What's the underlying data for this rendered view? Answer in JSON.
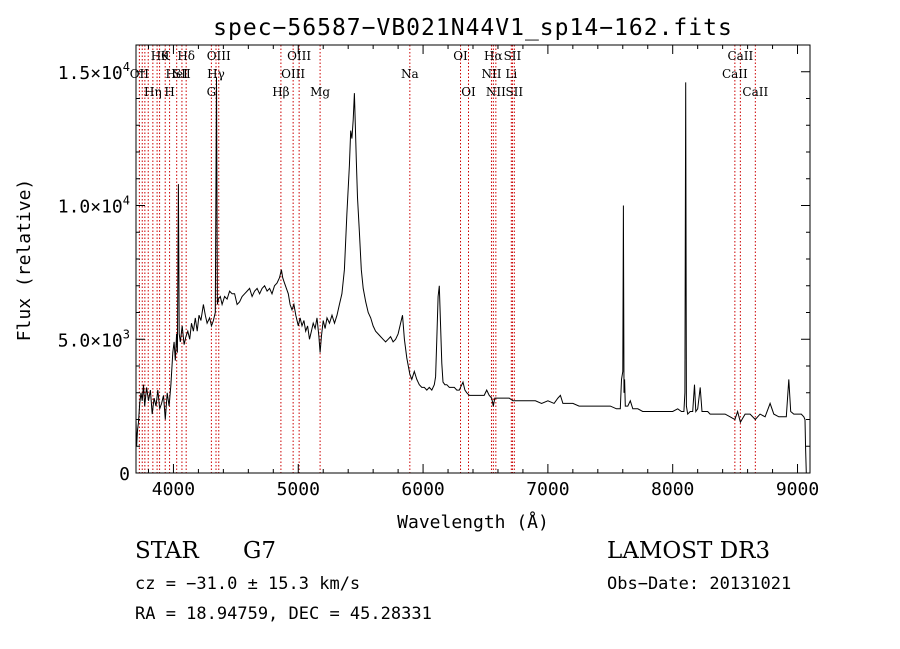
{
  "chart_data": {
    "type": "line",
    "title": "spec−56587−VB021N44V1_sp14−162.fits",
    "xlabel": "Wavelength (Å)",
    "ylabel": "Flux (relative)",
    "xlim": [
      3700,
      9100
    ],
    "ylim": [
      0,
      16000
    ],
    "xticks": [
      4000,
      5000,
      6000,
      7000,
      8000,
      9000
    ],
    "xtick_labels": [
      "4000",
      "5000",
      "6000",
      "7000",
      "8000",
      "9000"
    ],
    "yticks": [
      0,
      5000,
      10000,
      15000
    ],
    "ytick_labels": [
      {
        "mant": "0",
        "exp": ""
      },
      {
        "mant": "5.0×10",
        "exp": "3"
      },
      {
        "mant": "1.0×10",
        "exp": "4"
      },
      {
        "mant": "1.5×10",
        "exp": "4"
      }
    ],
    "lines_color": "#cc0000",
    "spectrum_color": "#000000",
    "line_markers": [
      {
        "wl": 3727,
        "label": "OII",
        "row": 1
      },
      {
        "wl": 3750,
        "label": "",
        "row": 0
      },
      {
        "wl": 3771,
        "label": "",
        "row": 0
      },
      {
        "wl": 3798,
        "label": "",
        "row": 0
      },
      {
        "wl": 3835,
        "label": "Hη",
        "row": 2
      },
      {
        "wl": 3869,
        "label": "",
        "row": 0
      },
      {
        "wl": 3889,
        "label": "Hθ",
        "row": 0
      },
      {
        "wl": 3934,
        "label": "K",
        "row": 0
      },
      {
        "wl": 3969,
        "label": "H",
        "row": 2
      },
      {
        "wl": 4026,
        "label": "HeI",
        "row": 1
      },
      {
        "wl": 4068,
        "label": "SII",
        "row": 1
      },
      {
        "wl": 4102,
        "label": "Hδ",
        "row": 0
      },
      {
        "wl": 4304,
        "label": "G",
        "row": 2
      },
      {
        "wl": 4341,
        "label": "Hγ",
        "row": 1
      },
      {
        "wl": 4363,
        "label": "OIII",
        "row": 0
      },
      {
        "wl": 4861,
        "label": "Hβ",
        "row": 2
      },
      {
        "wl": 4959,
        "label": "OIII",
        "row": 1
      },
      {
        "wl": 5007,
        "label": "OIII",
        "row": 0
      },
      {
        "wl": 5175,
        "label": "Mg",
        "row": 2
      },
      {
        "wl": 5894,
        "label": "Na",
        "row": 1
      },
      {
        "wl": 6300,
        "label": "OI",
        "row": 0
      },
      {
        "wl": 6364,
        "label": "OI",
        "row": 2
      },
      {
        "wl": 6548,
        "label": "NII",
        "row": 1
      },
      {
        "wl": 6563,
        "label": "Hα",
        "row": 0
      },
      {
        "wl": 6583,
        "label": "NII",
        "row": 2
      },
      {
        "wl": 6707,
        "label": "Li",
        "row": 1
      },
      {
        "wl": 6716,
        "label": "SII",
        "row": 0
      },
      {
        "wl": 6731,
        "label": "SII",
        "row": 2
      },
      {
        "wl": 8498,
        "label": "CaII",
        "row": 1
      },
      {
        "wl": 8542,
        "label": "CaII",
        "row": 0
      },
      {
        "wl": 8662,
        "label": "CaII",
        "row": 2
      }
    ],
    "spectrum": [
      [
        3700,
        2000
      ],
      [
        3705,
        1000
      ],
      [
        3712,
        1600
      ],
      [
        3720,
        1900
      ],
      [
        3730,
        2600
      ],
      [
        3740,
        3000
      ],
      [
        3750,
        2700
      ],
      [
        3760,
        3300
      ],
      [
        3770,
        2500
      ],
      [
        3785,
        3200
      ],
      [
        3800,
        2700
      ],
      [
        3815,
        3100
      ],
      [
        3830,
        2200
      ],
      [
        3845,
        2800
      ],
      [
        3860,
        2500
      ],
      [
        3875,
        3100
      ],
      [
        3890,
        2400
      ],
      [
        3905,
        2600
      ],
      [
        3920,
        2900
      ],
      [
        3935,
        2000
      ],
      [
        3950,
        3000
      ],
      [
        3965,
        2500
      ],
      [
        3980,
        3300
      ],
      [
        3995,
        4500
      ],
      [
        4005,
        4900
      ],
      [
        4015,
        4200
      ],
      [
        4025,
        5200
      ],
      [
        4032,
        4500
      ],
      [
        4040,
        10800
      ],
      [
        4046,
        5200
      ],
      [
        4055,
        4900
      ],
      [
        4070,
        5500
      ],
      [
        4085,
        4800
      ],
      [
        4100,
        5100
      ],
      [
        4115,
        5300
      ],
      [
        4130,
        5000
      ],
      [
        4145,
        5600
      ],
      [
        4160,
        5300
      ],
      [
        4175,
        5800
      ],
      [
        4190,
        5300
      ],
      [
        4205,
        5900
      ],
      [
        4220,
        5700
      ],
      [
        4240,
        6300
      ],
      [
        4255,
        5900
      ],
      [
        4270,
        5600
      ],
      [
        4290,
        5800
      ],
      [
        4305,
        5500
      ],
      [
        4320,
        5700
      ],
      [
        4335,
        6000
      ],
      [
        4345,
        14800
      ],
      [
        4352,
        6300
      ],
      [
        4360,
        6500
      ],
      [
        4375,
        6600
      ],
      [
        4390,
        6300
      ],
      [
        4410,
        6600
      ],
      [
        4430,
        6500
      ],
      [
        4450,
        6800
      ],
      [
        4470,
        6700
      ],
      [
        4490,
        6700
      ],
      [
        4510,
        6300
      ],
      [
        4530,
        6400
      ],
      [
        4550,
        6600
      ],
      [
        4570,
        6700
      ],
      [
        4590,
        6800
      ],
      [
        4610,
        6900
      ],
      [
        4630,
        6600
      ],
      [
        4650,
        6800
      ],
      [
        4670,
        6900
      ],
      [
        4690,
        6700
      ],
      [
        4710,
        6900
      ],
      [
        4730,
        7000
      ],
      [
        4750,
        6800
      ],
      [
        4770,
        6900
      ],
      [
        4790,
        6700
      ],
      [
        4810,
        7000
      ],
      [
        4830,
        7100
      ],
      [
        4850,
        7300
      ],
      [
        4865,
        7600
      ],
      [
        4875,
        7300
      ],
      [
        4890,
        7100
      ],
      [
        4905,
        6900
      ],
      [
        4920,
        6700
      ],
      [
        4935,
        6300
      ],
      [
        4950,
        6100
      ],
      [
        4965,
        6300
      ],
      [
        4980,
        5900
      ],
      [
        5000,
        5500
      ],
      [
        5015,
        5800
      ],
      [
        5030,
        5500
      ],
      [
        5045,
        5700
      ],
      [
        5060,
        5300
      ],
      [
        5075,
        5500
      ],
      [
        5090,
        5000
      ],
      [
        5105,
        5300
      ],
      [
        5120,
        5600
      ],
      [
        5135,
        5400
      ],
      [
        5150,
        5800
      ],
      [
        5165,
        5100
      ],
      [
        5175,
        4500
      ],
      [
        5185,
        5100
      ],
      [
        5200,
        5700
      ],
      [
        5215,
        5400
      ],
      [
        5230,
        5800
      ],
      [
        5250,
        5600
      ],
      [
        5270,
        5900
      ],
      [
        5290,
        5600
      ],
      [
        5310,
        5900
      ],
      [
        5330,
        6300
      ],
      [
        5350,
        6700
      ],
      [
        5370,
        7600
      ],
      [
        5390,
        9700
      ],
      [
        5410,
        11500
      ],
      [
        5420,
        12800
      ],
      [
        5430,
        12500
      ],
      [
        5440,
        13200
      ],
      [
        5450,
        14200
      ],
      [
        5458,
        12900
      ],
      [
        5465,
        11700
      ],
      [
        5475,
        10300
      ],
      [
        5490,
        9000
      ],
      [
        5505,
        7600
      ],
      [
        5520,
        6900
      ],
      [
        5540,
        6400
      ],
      [
        5560,
        6000
      ],
      [
        5580,
        5800
      ],
      [
        5600,
        5500
      ],
      [
        5620,
        5300
      ],
      [
        5640,
        5200
      ],
      [
        5660,
        5100
      ],
      [
        5680,
        5000
      ],
      [
        5700,
        4900
      ],
      [
        5720,
        5000
      ],
      [
        5740,
        5100
      ],
      [
        5760,
        4900
      ],
      [
        5780,
        5000
      ],
      [
        5800,
        5200
      ],
      [
        5820,
        5600
      ],
      [
        5835,
        5900
      ],
      [
        5850,
        5000
      ],
      [
        5870,
        4300
      ],
      [
        5894,
        3700
      ],
      [
        5910,
        3500
      ],
      [
        5930,
        3800
      ],
      [
        5950,
        3500
      ],
      [
        5970,
        3300
      ],
      [
        5990,
        3200
      ],
      [
        6010,
        3200
      ],
      [
        6030,
        3100
      ],
      [
        6050,
        3200
      ],
      [
        6070,
        3100
      ],
      [
        6090,
        3300
      ],
      [
        6100,
        3600
      ],
      [
        6110,
        5000
      ],
      [
        6120,
        6600
      ],
      [
        6130,
        7000
      ],
      [
        6140,
        5600
      ],
      [
        6150,
        4100
      ],
      [
        6160,
        3400
      ],
      [
        6175,
        3300
      ],
      [
        6190,
        3300
      ],
      [
        6210,
        3200
      ],
      [
        6230,
        3200
      ],
      [
        6250,
        3200
      ],
      [
        6270,
        3100
      ],
      [
        6290,
        3100
      ],
      [
        6300,
        3200
      ],
      [
        6320,
        3400
      ],
      [
        6335,
        3100
      ],
      [
        6350,
        3000
      ],
      [
        6370,
        2900
      ],
      [
        6400,
        2900
      ],
      [
        6430,
        2900
      ],
      [
        6460,
        2900
      ],
      [
        6490,
        2900
      ],
      [
        6510,
        3100
      ],
      [
        6530,
        2900
      ],
      [
        6550,
        2800
      ],
      [
        6563,
        2500
      ],
      [
        6575,
        2800
      ],
      [
        6600,
        2800
      ],
      [
        6630,
        2800
      ],
      [
        6660,
        2800
      ],
      [
        6690,
        2800
      ],
      [
        6720,
        2700
      ],
      [
        6750,
        2700
      ],
      [
        6800,
        2700
      ],
      [
        6850,
        2700
      ],
      [
        6900,
        2700
      ],
      [
        6950,
        2600
      ],
      [
        7000,
        2700
      ],
      [
        7050,
        2600
      ],
      [
        7080,
        2800
      ],
      [
        7100,
        2900
      ],
      [
        7120,
        2600
      ],
      [
        7150,
        2600
      ],
      [
        7200,
        2600
      ],
      [
        7250,
        2500
      ],
      [
        7300,
        2500
      ],
      [
        7350,
        2500
      ],
      [
        7400,
        2500
      ],
      [
        7450,
        2500
      ],
      [
        7500,
        2500
      ],
      [
        7550,
        2400
      ],
      [
        7580,
        2400
      ],
      [
        7590,
        3500
      ],
      [
        7600,
        3800
      ],
      [
        7605,
        10000
      ],
      [
        7610,
        3000
      ],
      [
        7615,
        3500
      ],
      [
        7620,
        2500
      ],
      [
        7640,
        2500
      ],
      [
        7660,
        2700
      ],
      [
        7680,
        2400
      ],
      [
        7720,
        2400
      ],
      [
        7760,
        2300
      ],
      [
        7800,
        2300
      ],
      [
        7850,
        2300
      ],
      [
        7900,
        2300
      ],
      [
        7950,
        2300
      ],
      [
        8000,
        2300
      ],
      [
        8040,
        2400
      ],
      [
        8070,
        2300
      ],
      [
        8090,
        2300
      ],
      [
        8098,
        3000
      ],
      [
        8104,
        14600
      ],
      [
        8110,
        2500
      ],
      [
        8120,
        2200
      ],
      [
        8140,
        2300
      ],
      [
        8160,
        2300
      ],
      [
        8175,
        3300
      ],
      [
        8185,
        2300
      ],
      [
        8200,
        2400
      ],
      [
        8220,
        3200
      ],
      [
        8235,
        2300
      ],
      [
        8250,
        2300
      ],
      [
        8280,
        2300
      ],
      [
        8300,
        2200
      ],
      [
        8340,
        2200
      ],
      [
        8380,
        2200
      ],
      [
        8420,
        2200
      ],
      [
        8460,
        2100
      ],
      [
        8498,
        2000
      ],
      [
        8520,
        2300
      ],
      [
        8542,
        1900
      ],
      [
        8580,
        2200
      ],
      [
        8620,
        2200
      ],
      [
        8662,
        2000
      ],
      [
        8700,
        2200
      ],
      [
        8740,
        2100
      ],
      [
        8780,
        2600
      ],
      [
        8810,
        2200
      ],
      [
        8850,
        2100
      ],
      [
        8880,
        2100
      ],
      [
        8910,
        2100
      ],
      [
        8930,
        3500
      ],
      [
        8945,
        2300
      ],
      [
        8970,
        2200
      ],
      [
        9000,
        2200
      ],
      [
        9030,
        2200
      ],
      [
        9050,
        2100
      ],
      [
        9060,
        2000
      ],
      [
        9065,
        900
      ],
      [
        9070,
        0
      ]
    ]
  },
  "info": {
    "object_type": "STAR",
    "subclass": "G7",
    "survey": "LAMOST DR3",
    "redshift": "cz = −31.0 ± 15.3 km/s",
    "obs_date": "Obs−Date: 20131021",
    "coords": "RA =  18.94759, DEC =  45.28331"
  }
}
